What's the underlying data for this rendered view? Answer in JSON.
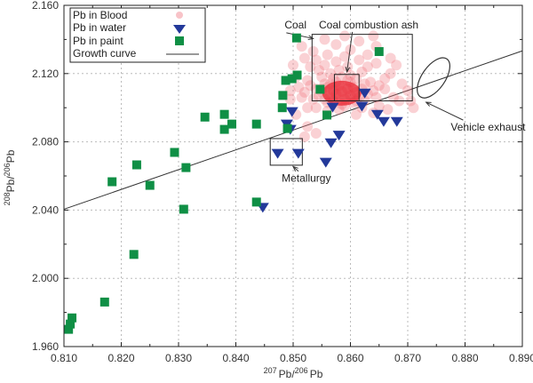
{
  "chart_data": {
    "type": "scatter",
    "xlabel": {
      "sup1": "207",
      "base1": "Pb/",
      "sup2": "206",
      "base2": "Pb"
    },
    "ylabel": {
      "sup1": "208",
      "base1": "Pb/",
      "sup2": "206",
      "base2": "Pb"
    },
    "xlim": [
      0.81,
      0.89
    ],
    "ylim": [
      1.96,
      2.16
    ],
    "xticks": [
      "0.810",
      "0.820",
      "0.830",
      "0.840",
      "0.850",
      "0.860",
      "0.870",
      "0.880",
      "0.890"
    ],
    "yticks": [
      "1.960",
      "2.000",
      "2.040",
      "2.080",
      "2.120",
      "2.160"
    ],
    "grid": true,
    "legend_position": "top-left",
    "colors": {
      "blood": "#f07a85",
      "water": "#23399a",
      "paint": "#0f8f45",
      "curve": "#333333"
    },
    "series": [
      {
        "name": "Pb in Blood",
        "marker": "circle",
        "points": [
          [
            0.8585,
            2.1095
          ],
          [
            0.8575,
            2.108
          ],
          [
            0.8595,
            2.111
          ],
          [
            0.8565,
            2.106
          ],
          [
            0.8605,
            2.112
          ],
          [
            0.858,
            2.113
          ],
          [
            0.8555,
            2.105
          ],
          [
            0.86,
            2.107
          ],
          [
            0.857,
            2.11
          ],
          [
            0.859,
            2.105
          ],
          [
            0.856,
            2.112
          ],
          [
            0.861,
            2.109
          ],
          [
            0.855,
            2.109
          ],
          [
            0.862,
            2.111
          ],
          [
            0.8545,
            2.107
          ],
          [
            0.8615,
            2.106
          ],
          [
            0.8575,
            2.115
          ],
          [
            0.8595,
            2.116
          ],
          [
            0.856,
            2.103
          ],
          [
            0.8605,
            2.103
          ],
          [
            0.854,
            2.111
          ],
          [
            0.863,
            2.108
          ],
          [
            0.8535,
            2.105
          ],
          [
            0.8625,
            2.114
          ],
          [
            0.8585,
            2.102
          ],
          [
            0.8555,
            2.114
          ],
          [
            0.857,
            2.117
          ],
          [
            0.861,
            2.117
          ],
          [
            0.855,
            2.118
          ],
          [
            0.864,
            2.11
          ],
          [
            0.853,
            2.113
          ],
          [
            0.8645,
            2.106
          ],
          [
            0.852,
            2.109
          ],
          [
            0.86,
            2.119
          ],
          [
            0.8565,
            2.12
          ],
          [
            0.8635,
            2.115
          ],
          [
            0.8525,
            2.116
          ],
          [
            0.865,
            2.113
          ],
          [
            0.8515,
            2.106
          ],
          [
            0.858,
            2.122
          ],
          [
            0.862,
            2.121
          ],
          [
            0.8545,
            2.122
          ],
          [
            0.866,
            2.111
          ],
          [
            0.851,
            2.112
          ],
          [
            0.8595,
            2.124
          ],
          [
            0.8555,
            2.125
          ],
          [
            0.863,
            2.124
          ],
          [
            0.853,
            2.124
          ],
          [
            0.866,
            2.117
          ],
          [
            0.8505,
            2.118
          ],
          [
            0.8575,
            2.127
          ],
          [
            0.8615,
            2.128
          ],
          [
            0.854,
            2.128
          ],
          [
            0.8645,
            2.126
          ],
          [
            0.852,
            2.129
          ],
          [
            0.859,
            2.13
          ],
          [
            0.867,
            2.12
          ],
          [
            0.856,
            2.131
          ],
          [
            0.863,
            2.131
          ],
          [
            0.8535,
            2.133
          ],
          [
            0.86,
            2.134
          ],
          [
            0.867,
            2.129
          ],
          [
            0.8515,
            2.136
          ],
          [
            0.8575,
            2.137
          ],
          [
            0.8645,
            2.136
          ],
          [
            0.8555,
            2.14
          ],
          [
            0.8615,
            2.139
          ],
          [
            0.868,
            2.125
          ],
          [
            0.8525,
            2.1
          ],
          [
            0.8495,
            2.105
          ],
          [
            0.862,
            2.1
          ],
          [
            0.865,
            2.101
          ],
          [
            0.858,
            2.099
          ],
          [
            0.854,
            2.1
          ],
          [
            0.8505,
            2.096
          ],
          [
            0.8675,
            2.106
          ],
          [
            0.869,
            2.114
          ],
          [
            0.87,
            2.11
          ],
          [
            0.8685,
            2.104
          ],
          [
            0.8665,
            2.099
          ],
          [
            0.8525,
            2.089
          ],
          [
            0.854,
            2.085
          ],
          [
            0.852,
            2.083
          ],
          [
            0.861,
            2.096
          ],
          [
            0.864,
            2.097
          ],
          [
            0.8495,
            2.11
          ],
          [
            0.85,
            2.125
          ],
          [
            0.864,
            2.142
          ],
          [
            0.859,
            2.142
          ],
          [
            0.8705,
            2.104
          ],
          [
            0.871,
            2.1
          ],
          [
            0.856,
            2.098
          ],
          [
            0.859,
            2.101
          ],
          [
            0.86,
            2.115
          ],
          [
            0.857,
            2.104
          ],
          [
            0.861,
            2.104
          ],
          [
            0.8585,
            2.118
          ],
          [
            0.855,
            2.111
          ],
          [
            0.8625,
            2.104
          ],
          [
            0.8565,
            2.114
          ]
        ]
      },
      {
        "name": "Pb in water",
        "marker": "triangle-down",
        "points": [
          [
            0.8498,
            2.0977
          ],
          [
            0.8489,
            2.0904
          ],
          [
            0.8495,
            2.0873
          ],
          [
            0.8569,
            2.1003
          ],
          [
            0.862,
            2.1008
          ],
          [
            0.8625,
            2.1086
          ],
          [
            0.8647,
            2.0961
          ],
          [
            0.8658,
            2.0919
          ],
          [
            0.8681,
            2.0919
          ],
          [
            0.858,
            2.0839
          ],
          [
            0.8566,
            2.0794
          ],
          [
            0.8473,
            2.0732
          ],
          [
            0.8509,
            2.0732
          ],
          [
            0.8557,
            2.068
          ],
          [
            0.8447,
            2.0416
          ]
        ]
      },
      {
        "name": "Pb in paint",
        "marker": "square",
        "points": [
          [
            0.8108,
            1.9701
          ],
          [
            0.8111,
            1.9732
          ],
          [
            0.8114,
            1.9768
          ],
          [
            0.8171,
            1.9861
          ],
          [
            0.8222,
            2.014
          ],
          [
            0.8184,
            2.0566
          ],
          [
            0.8227,
            2.0665
          ],
          [
            0.825,
            2.0545
          ],
          [
            0.8293,
            2.0738
          ],
          [
            0.8313,
            2.0649
          ],
          [
            0.8309,
            2.0405
          ],
          [
            0.8346,
            2.0945
          ],
          [
            0.838,
            2.0961
          ],
          [
            0.838,
            2.0873
          ],
          [
            0.8393,
            2.0904
          ],
          [
            0.8436,
            2.0904
          ],
          [
            0.8436,
            2.0447
          ],
          [
            0.849,
            2.0878
          ],
          [
            0.8481,
            2.1
          ],
          [
            0.8482,
            2.1072
          ],
          [
            0.8487,
            2.116
          ],
          [
            0.8498,
            2.117
          ],
          [
            0.8507,
            2.1191
          ],
          [
            0.8506,
            2.1409
          ],
          [
            0.8547,
            2.1108
          ],
          [
            0.8559,
            2.0957
          ],
          [
            0.865,
            2.1329
          ]
        ]
      },
      {
        "name": "Growth curve",
        "marker": "line",
        "points": [
          [
            0.81,
            2.0405
          ],
          [
            0.89,
            2.1333
          ]
        ]
      }
    ],
    "annotations": [
      {
        "text": "Coal",
        "box": [
          0.8533,
          0.8708,
          2.104,
          2.143
        ],
        "label_at": [
          0.8485,
          2.1465
        ],
        "arrow_to": [
          0.8535,
          2.1405
        ]
      },
      {
        "text": "Coal combustion ash",
        "box": [
          0.8572,
          0.8615,
          2.104,
          2.1195
        ],
        "label_at": [
          0.8545,
          2.1465
        ],
        "arrow_to": [
          0.8594,
          2.121
        ]
      },
      {
        "text": "Metallurgy",
        "box": [
          0.846,
          0.8516,
          2.0663,
          2.0819
        ],
        "label_at": [
          0.848,
          2.0565
        ],
        "arrow_to": [
          0.85,
          2.0655
        ]
      },
      {
        "text": "Vehicle exhaust",
        "ellipse": [
          0.8745,
          2.1175
        ],
        "label_at": [
          0.8775,
          2.0865
        ],
        "arrow_to": [
          0.8732,
          2.1032
        ]
      }
    ]
  }
}
